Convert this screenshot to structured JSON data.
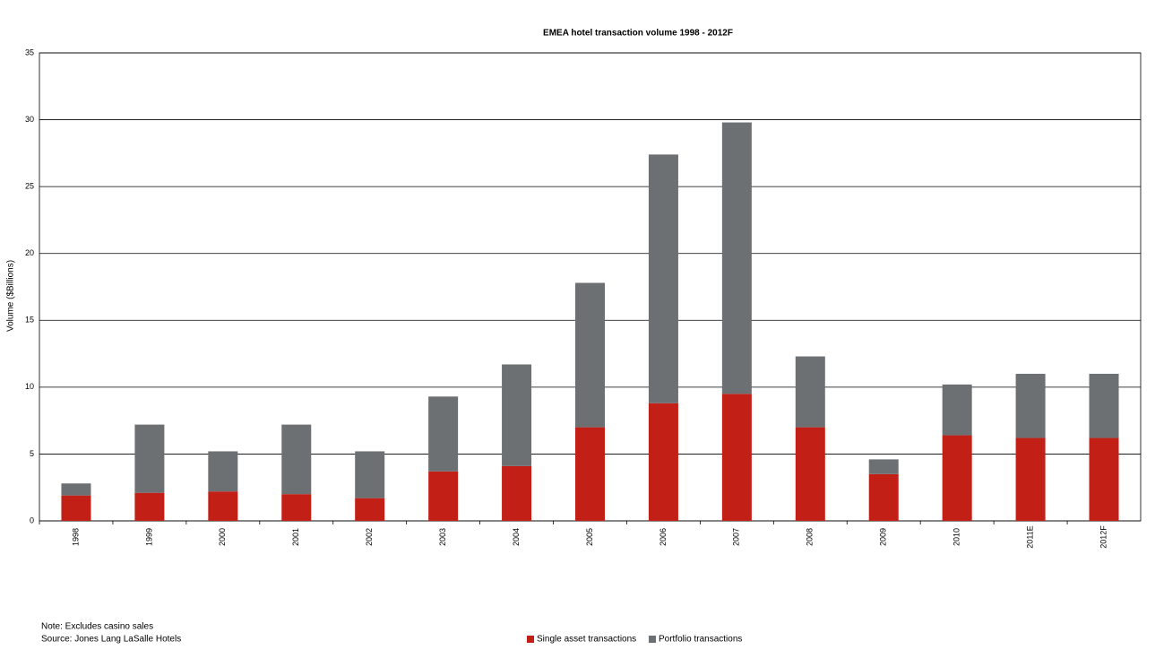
{
  "chart_data": {
    "type": "stacked_bar",
    "title": "EMEA hotel transaction volume 1998 - 2012F",
    "y_label": "Volume ($Billions)",
    "note": "Note:  Excludes casino sales",
    "source": "Source: Jones Lang LaSalle Hotels",
    "categories": [
      "1998",
      "1999",
      "2000",
      "2001",
      "2002",
      "2003",
      "2004",
      "2005",
      "2006",
      "2007",
      "2008",
      "2009",
      "2010",
      "2011E",
      "2012F"
    ],
    "series": [
      {
        "name": "Single asset transactions",
        "color": "#c21f17",
        "values": [
          1.9,
          2.1,
          2.2,
          2.0,
          1.7,
          3.7,
          4.1,
          7.0,
          8.8,
          9.5,
          7.0,
          3.5,
          6.4,
          6.2,
          6.2
        ]
      },
      {
        "name": "Portfolio transactions",
        "color": "#6d7072",
        "values": [
          0.9,
          5.1,
          3.0,
          5.2,
          3.5,
          5.6,
          7.6,
          10.8,
          18.6,
          20.3,
          5.3,
          1.1,
          3.8,
          4.8,
          4.8
        ]
      }
    ],
    "ylim": [
      0,
      35
    ],
    "yticks": [
      0,
      5,
      10,
      15,
      20,
      25,
      30,
      35
    ],
    "grid": true
  }
}
